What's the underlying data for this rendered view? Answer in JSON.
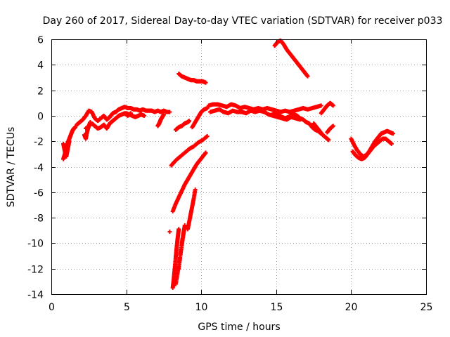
{
  "chart_data": {
    "type": "scatter",
    "title": "Day 260 of 2017, Sidereal Day-to-day VTEC variation (SDTVAR) for receiver p033",
    "xlabel": "GPS time / hours",
    "ylabel": "SDTVAR / TECUs",
    "xlim": [
      0,
      25
    ],
    "ylim": [
      -14,
      6
    ],
    "xticks": [
      0,
      5,
      10,
      15,
      20,
      25
    ],
    "yticks": [
      -14,
      -12,
      -10,
      -8,
      -6,
      -4,
      -2,
      0,
      2,
      4,
      6
    ],
    "grid": true,
    "marker": "plus",
    "color": "#ff0000",
    "tracks": [
      {
        "x": [
          0.8,
          0.9,
          1.0,
          1.1,
          1.2,
          1.3,
          1.4,
          1.5,
          1.6
        ],
        "y": [
          -3.4,
          -3.0,
          -2.5,
          -2.1,
          -1.8,
          -1.5,
          -1.2,
          -1.0,
          -0.9
        ]
      },
      {
        "x": [
          0.8,
          0.9,
          1.0,
          1.1,
          1.2
        ],
        "y": [
          -2.2,
          -2.8,
          -3.2,
          -2.6,
          -2.0
        ]
      },
      {
        "x": [
          1.7,
          1.9,
          2.1,
          2.3,
          2.5,
          2.7,
          2.9,
          3.1,
          3.3,
          3.5,
          3.7,
          3.9,
          4.1,
          4.3,
          4.5,
          4.7,
          4.9,
          5.1,
          5.3,
          5.5,
          5.7,
          5.9,
          6.1,
          6.3,
          6.5,
          6.7,
          6.9,
          7.1,
          7.3,
          7.5,
          7.7,
          7.9
        ],
        "y": [
          -0.7,
          -0.5,
          -0.3,
          0.0,
          0.4,
          0.3,
          -0.2,
          -0.4,
          -0.2,
          0.0,
          -0.3,
          -0.1,
          0.2,
          0.3,
          0.5,
          0.6,
          0.7,
          0.6,
          0.6,
          0.5,
          0.5,
          0.4,
          0.5,
          0.4,
          0.4,
          0.4,
          0.3,
          0.4,
          0.3,
          0.4,
          0.3,
          0.3
        ]
      },
      {
        "x": [
          2.3,
          2.5,
          2.7,
          2.9,
          3.1,
          3.3,
          3.5,
          3.7,
          3.9,
          4.1,
          4.3,
          4.5,
          4.7,
          4.9,
          5.1,
          5.3
        ],
        "y": [
          -1.0,
          -0.8,
          -0.6,
          -0.8,
          -1.0,
          -0.9,
          -0.7,
          -1.0,
          -0.6,
          -0.4,
          -0.2,
          0.0,
          0.1,
          0.2,
          0.0,
          0.2
        ]
      },
      {
        "x": [
          2.2,
          2.3,
          2.4,
          2.5,
          2.6
        ],
        "y": [
          -1.5,
          -1.8,
          -1.2,
          -0.8,
          -0.5
        ]
      },
      {
        "x": [
          5.0,
          5.2,
          5.4,
          5.6,
          5.8,
          6.0,
          6.2
        ],
        "y": [
          0.2,
          0.1,
          0.0,
          -0.1,
          0.0,
          0.1,
          0.0
        ]
      },
      {
        "x": [
          7.1,
          7.2,
          7.3,
          7.4,
          7.5
        ],
        "y": [
          -0.8,
          -0.6,
          -0.3,
          -0.1,
          0.1
        ]
      },
      {
        "x": [
          8.3,
          8.5,
          8.7,
          8.9,
          9.1,
          9.2
        ],
        "y": [
          -1.1,
          -0.9,
          -0.8,
          -0.6,
          -0.5,
          -0.4
        ]
      },
      {
        "x": [
          8.5,
          8.7,
          8.9,
          9.1,
          9.3,
          9.5,
          9.7,
          9.9,
          10.1,
          10.3
        ],
        "y": [
          3.3,
          3.1,
          3.0,
          2.9,
          2.8,
          2.8,
          2.7,
          2.7,
          2.7,
          2.6
        ]
      },
      {
        "x": [
          8.0,
          8.3,
          8.6,
          8.9,
          9.2,
          9.5,
          9.8,
          10.1,
          10.4
        ],
        "y": [
          -3.9,
          -3.5,
          -3.2,
          -2.9,
          -2.6,
          -2.4,
          -2.1,
          -1.9,
          -1.6
        ]
      },
      {
        "x": [
          8.1,
          8.3,
          8.5,
          8.7,
          8.9,
          9.1,
          9.3,
          9.5,
          9.7,
          9.9,
          10.1,
          10.3
        ],
        "y": [
          -7.5,
          -6.9,
          -6.4,
          -5.9,
          -5.4,
          -5.0,
          -4.6,
          -4.2,
          -3.8,
          -3.5,
          -3.2,
          -2.9
        ]
      },
      {
        "x": [
          8.1,
          8.15,
          8.2,
          8.25,
          8.3,
          8.35,
          8.4,
          8.45,
          8.5
        ],
        "y": [
          -13.5,
          -13.0,
          -12.4,
          -11.8,
          -11.1,
          -10.5,
          -9.9,
          -9.4,
          -8.9
        ]
      },
      {
        "x": [
          8.3,
          8.4,
          8.5,
          8.6,
          8.7,
          8.8,
          8.9
        ],
        "y": [
          -13.2,
          -12.5,
          -11.8,
          -11.0,
          -10.2,
          -9.4,
          -8.6
        ]
      },
      {
        "x": [
          8.5,
          8.6,
          8.7,
          8.8,
          8.9
        ],
        "y": [
          -12.0,
          -11.0,
          -10.0,
          -9.3,
          -8.7
        ]
      },
      {
        "x": [
          9.1,
          9.2,
          9.3,
          9.4,
          9.5,
          9.6
        ],
        "y": [
          -8.9,
          -8.3,
          -7.7,
          -7.1,
          -6.5,
          -5.8
        ]
      },
      {
        "x": [
          7.9
        ],
        "y": [
          -9.1
        ]
      },
      {
        "x": [
          9.4,
          9.6,
          9.8,
          10.0,
          10.2,
          10.4
        ],
        "y": [
          -0.9,
          -0.5,
          -0.1,
          0.3,
          0.5,
          0.6
        ]
      },
      {
        "x": [
          10.5,
          10.8,
          11.1,
          11.4,
          11.7,
          12.0,
          12.3,
          12.6,
          12.9,
          13.2,
          13.5,
          13.8,
          14.1,
          14.4,
          14.7,
          15.0,
          15.3,
          15.6,
          15.9,
          16.2,
          16.5,
          16.8,
          17.1,
          17.4,
          17.7,
          18.0
        ],
        "y": [
          0.8,
          0.9,
          0.9,
          0.8,
          0.7,
          0.9,
          0.8,
          0.6,
          0.7,
          0.6,
          0.5,
          0.6,
          0.5,
          0.6,
          0.5,
          0.4,
          0.3,
          0.4,
          0.3,
          0.4,
          0.5,
          0.6,
          0.5,
          0.6,
          0.7,
          0.8
        ]
      },
      {
        "x": [
          10.6,
          10.9,
          11.2,
          11.5,
          11.8,
          12.1,
          12.4,
          12.7,
          13.0,
          13.3,
          13.6,
          13.9,
          14.2,
          14.5,
          14.8,
          15.1,
          15.4,
          15.7,
          16.0,
          16.3,
          16.6
        ],
        "y": [
          0.3,
          0.4,
          0.5,
          0.3,
          0.2,
          0.4,
          0.3,
          0.3,
          0.2,
          0.4,
          0.3,
          0.4,
          0.3,
          0.1,
          0.0,
          -0.1,
          -0.2,
          -0.3,
          -0.1,
          -0.2,
          -0.3
        ]
      },
      {
        "x": [
          14.8,
          15.0,
          15.2,
          15.4,
          15.6,
          15.8,
          16.0,
          16.2,
          16.4,
          16.6,
          16.8,
          17.0,
          17.2,
          17.4,
          17.6,
          17.8,
          18.0
        ],
        "y": [
          0.2,
          0.1,
          0.0,
          -0.1,
          -0.2,
          -0.1,
          0.0,
          0.1,
          0.0,
          -0.2,
          -0.3,
          -0.5,
          -0.6,
          -0.9,
          -1.1,
          -1.2,
          -1.4
        ]
      },
      {
        "x": [
          17.5,
          17.7,
          17.9,
          18.1,
          18.3,
          18.5
        ],
        "y": [
          -0.6,
          -0.9,
          -1.2,
          -1.5,
          -1.7,
          -1.9
        ]
      },
      {
        "x": [
          18.0,
          18.2,
          18.4,
          18.6,
          18.8
        ],
        "y": [
          0.2,
          0.5,
          0.8,
          1.0,
          0.8
        ]
      },
      {
        "x": [
          18.4,
          18.6,
          18.8
        ],
        "y": [
          -1.3,
          -1.0,
          -0.8
        ]
      },
      {
        "x": [
          14.9,
          15.1,
          15.3,
          15.5,
          15.7,
          15.9,
          16.1,
          16.3,
          16.5,
          16.7,
          16.9,
          17.1
        ],
        "y": [
          5.5,
          5.8,
          5.9,
          5.6,
          5.2,
          4.9,
          4.6,
          4.3,
          4.0,
          3.7,
          3.4,
          3.1
        ]
      },
      {
        "x": [
          20.0,
          20.2,
          20.4,
          20.6,
          20.8,
          21.0,
          21.2,
          21.4,
          21.6,
          21.8,
          22.0,
          22.2,
          22.4,
          22.6,
          22.8
        ],
        "y": [
          -1.8,
          -2.3,
          -2.7,
          -3.0,
          -3.2,
          -3.1,
          -2.8,
          -2.4,
          -2.0,
          -1.7,
          -1.4,
          -1.3,
          -1.2,
          -1.3,
          -1.4
        ]
      },
      {
        "x": [
          20.1,
          20.3,
          20.5,
          20.7,
          20.9,
          21.1,
          21.3,
          21.5,
          21.7,
          21.9,
          22.1,
          22.3,
          22.5,
          22.7
        ],
        "y": [
          -2.8,
          -3.1,
          -3.3,
          -3.4,
          -3.3,
          -3.0,
          -2.7,
          -2.4,
          -2.2,
          -2.0,
          -1.8,
          -1.8,
          -2.0,
          -2.2
        ]
      }
    ]
  }
}
